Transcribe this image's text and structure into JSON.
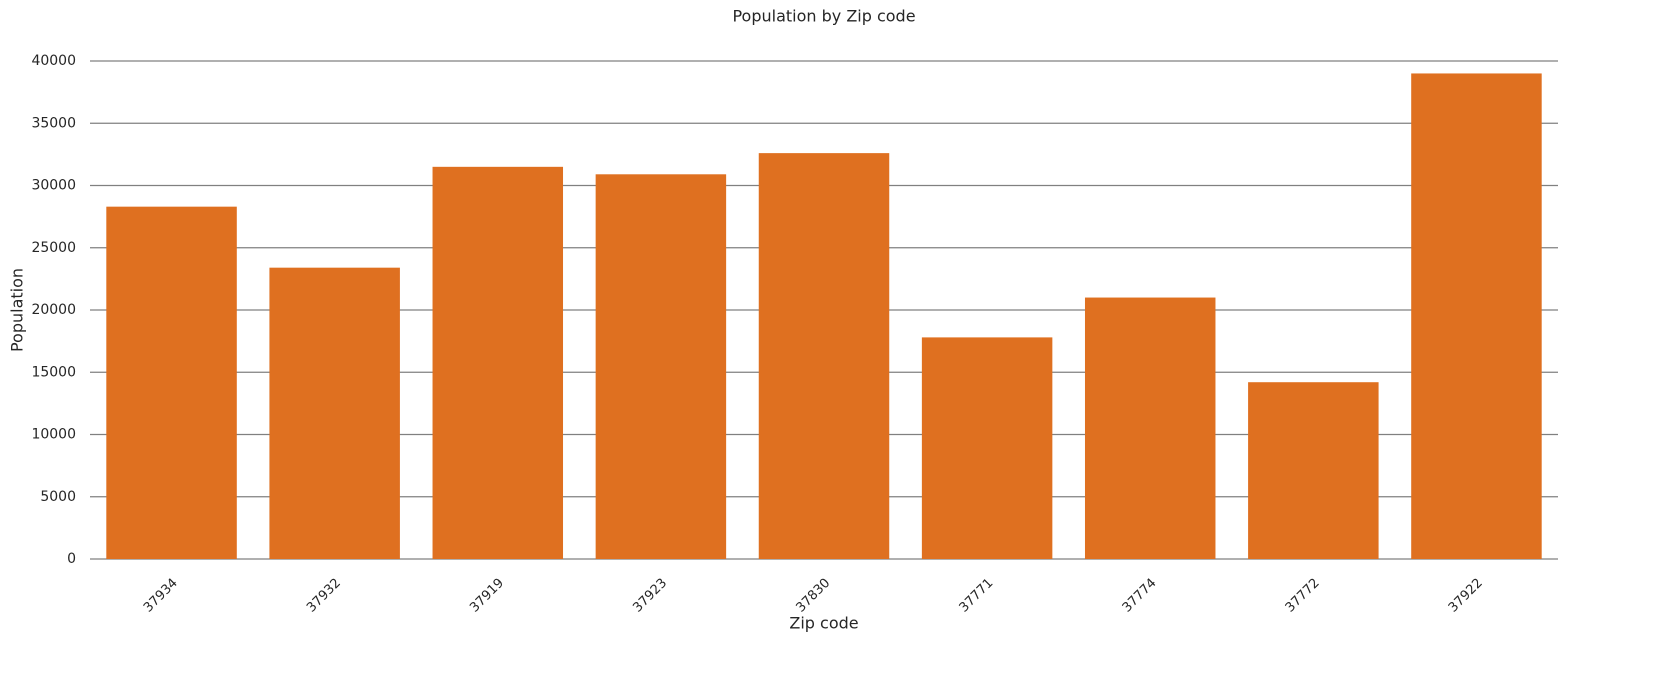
{
  "chart_data": {
    "type": "bar",
    "title": "Population by Zip code",
    "x_label": "Zip code",
    "y_label": "Population",
    "categories": [
      "37934",
      "37932",
      "37919",
      "37923",
      "37830",
      "37771",
      "37774",
      "37772",
      "37922"
    ],
    "values": [
      28300,
      23400,
      31500,
      30900,
      32600,
      17800,
      21000,
      14200,
      39000
    ],
    "color": "#df7020",
    "ylim": [
      0,
      40000
    ],
    "yticks": [
      0,
      5000,
      10000,
      15000,
      20000,
      25000,
      30000,
      35000,
      40000
    ],
    "grid": true
  }
}
